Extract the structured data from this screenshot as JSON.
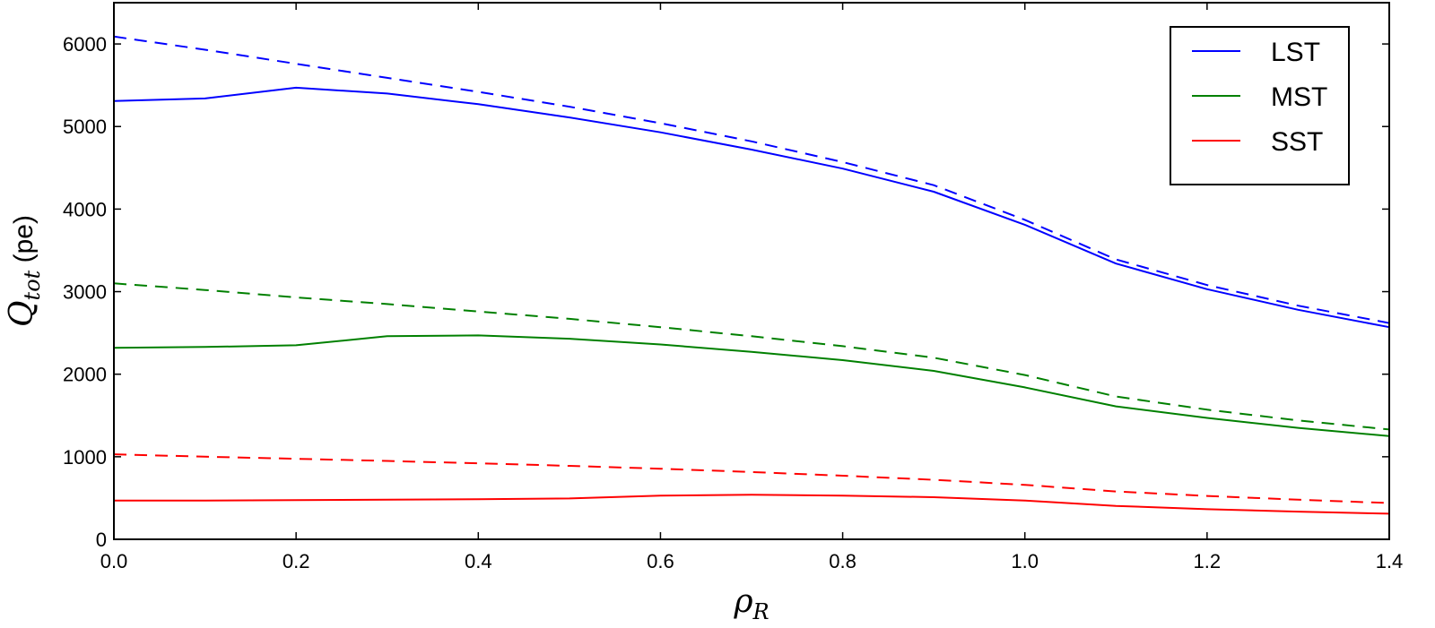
{
  "chart_data": {
    "type": "line",
    "title": "",
    "xlabel": {
      "main": "ρ",
      "sub": "R"
    },
    "ylabel": {
      "main": "Q",
      "sub": "tot",
      "unit": " (pe)"
    },
    "xlim": [
      0.0,
      1.4
    ],
    "ylim": [
      0,
      6500
    ],
    "grid": false,
    "legend_position": "top-right",
    "x_ticks": [
      0.0,
      0.2,
      0.4,
      0.6,
      0.8,
      1.0,
      1.2,
      1.4
    ],
    "x_tick_labels": [
      "0.0",
      "0.2",
      "0.4",
      "0.6",
      "0.8",
      "1.0",
      "1.2",
      "1.4"
    ],
    "y_ticks": [
      0,
      1000,
      2000,
      3000,
      4000,
      5000,
      6000
    ],
    "y_tick_labels": [
      "0",
      "1000",
      "2000",
      "3000",
      "4000",
      "5000",
      "6000"
    ],
    "x": [
      0.0,
      0.1,
      0.2,
      0.3,
      0.4,
      0.5,
      0.6,
      0.7,
      0.8,
      0.9,
      1.0,
      1.1,
      1.2,
      1.3,
      1.4
    ],
    "series": [
      {
        "name": "LST",
        "color": "#0000ff",
        "style": "solid",
        "values": [
          5310,
          5340,
          5470,
          5400,
          5270,
          5110,
          4930,
          4720,
          4490,
          4210,
          3810,
          3340,
          3030,
          2780,
          2570
        ]
      },
      {
        "name": "MST",
        "color": "#008000",
        "style": "solid",
        "values": [
          2320,
          2330,
          2350,
          2460,
          2470,
          2430,
          2360,
          2270,
          2170,
          2040,
          1840,
          1610,
          1470,
          1350,
          1250
        ]
      },
      {
        "name": "SST",
        "color": "#ff0000",
        "style": "solid",
        "values": [
          470,
          470,
          475,
          480,
          485,
          495,
          530,
          540,
          530,
          510,
          470,
          405,
          365,
          335,
          310
        ]
      },
      {
        "name": "",
        "color": "#0000ff",
        "style": "dashed",
        "values": [
          6090,
          5930,
          5760,
          5590,
          5420,
          5240,
          5040,
          4820,
          4570,
          4290,
          3870,
          3390,
          3080,
          2830,
          2620
        ]
      },
      {
        "name": "",
        "color": "#008000",
        "style": "dashed",
        "values": [
          3100,
          3020,
          2930,
          2850,
          2760,
          2670,
          2570,
          2460,
          2340,
          2200,
          1990,
          1730,
          1570,
          1440,
          1330
        ]
      },
      {
        "name": "",
        "color": "#ff0000",
        "style": "dashed",
        "values": [
          1030,
          1000,
          975,
          950,
          920,
          890,
          855,
          815,
          770,
          720,
          660,
          580,
          525,
          480,
          440
        ]
      }
    ]
  }
}
